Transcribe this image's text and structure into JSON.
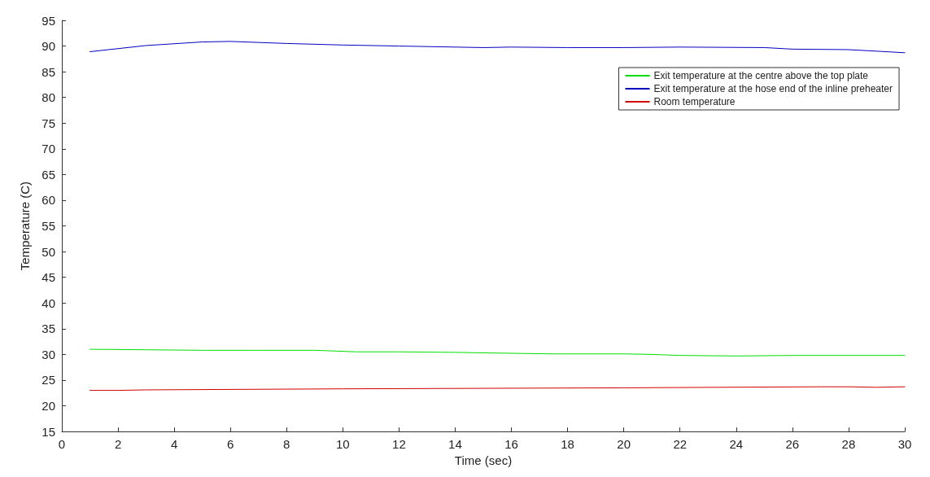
{
  "chart_data": {
    "type": "line",
    "xlabel": "Time (sec)",
    "ylabel": "Temperature (C)",
    "xlim": [
      0,
      30
    ],
    "xticks": [
      0,
      2,
      4,
      6,
      8,
      10,
      12,
      14,
      16,
      18,
      20,
      22,
      24,
      26,
      28,
      30
    ],
    "ylim": [
      15,
      95
    ],
    "yticks": [
      15,
      20,
      25,
      30,
      35,
      40,
      45,
      50,
      55,
      60,
      65,
      70,
      75,
      80,
      85,
      90,
      95
    ],
    "grid": false,
    "legend": "top right",
    "marker": "none",
    "line_style": "solid",
    "series": [
      {
        "name": "Exit temperature at the centre above the top plate",
        "color": "#00e000",
        "x": [
          1,
          3,
          5,
          7,
          9,
          10.5,
          12,
          14,
          15,
          17.5,
          20,
          21,
          22,
          24,
          26,
          28,
          30
        ],
        "values": [
          31.0,
          30.9,
          30.8,
          30.8,
          30.8,
          30.5,
          30.5,
          30.4,
          30.3,
          30.1,
          30.1,
          30.0,
          29.8,
          29.7,
          29.8,
          29.8,
          29.8
        ]
      },
      {
        "name": "Exit temperature at the hose end of the inline preheater",
        "color": "#0000c0",
        "x": [
          1,
          3,
          5,
          6,
          8,
          10,
          12,
          15,
          16,
          18,
          20,
          22,
          25,
          26,
          28,
          30
        ],
        "values": [
          88.9,
          90.1,
          90.8,
          90.9,
          90.5,
          90.2,
          90.0,
          89.7,
          89.8,
          89.7,
          89.7,
          89.8,
          89.7,
          89.4,
          89.3,
          88.7
        ]
      },
      {
        "name": "Room temperature",
        "color": "#d00000",
        "x": [
          1,
          2,
          3,
          10,
          20,
          27,
          28,
          29,
          30
        ],
        "values": [
          23.0,
          23.0,
          23.1,
          23.3,
          23.5,
          23.7,
          23.7,
          23.6,
          23.7
        ]
      }
    ]
  }
}
